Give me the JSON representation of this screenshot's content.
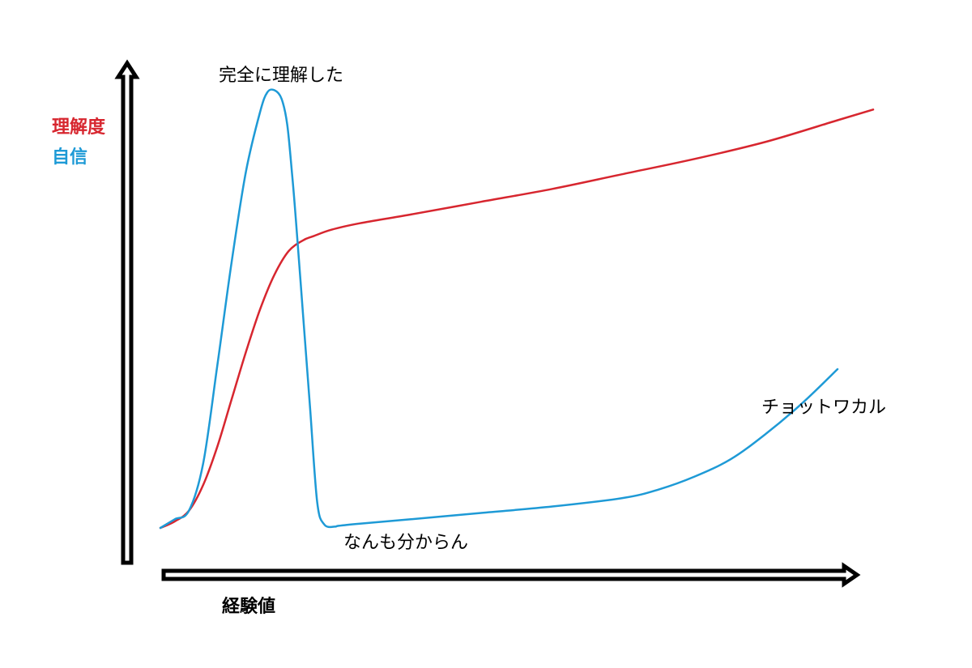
{
  "chart_data": {
    "type": "line",
    "title": "",
    "xlabel": "経験値",
    "ylabel": "",
    "xlim": [
      0,
      100
    ],
    "ylim": [
      0,
      100
    ],
    "grid": false,
    "legend": "top-left",
    "series": [
      {
        "name": "理解度",
        "color": "#d7262f",
        "x": [
          0,
          2,
          4,
          6,
          8,
          10,
          12,
          14,
          16,
          18,
          20,
          21.5,
          24,
          28,
          35,
          45,
          55,
          65,
          75,
          85,
          95,
          100
        ],
        "y": [
          0,
          1.5,
          4,
          10,
          19,
          30,
          41,
          51,
          59,
          64.5,
          67,
          68,
          69.5,
          71,
          73,
          76,
          79,
          82.5,
          86,
          90,
          95,
          97.5
        ]
      },
      {
        "name": "自信",
        "color": "#1e9ad6",
        "x": [
          0,
          2,
          4,
          6,
          8,
          10,
          12,
          14,
          15,
          16,
          17,
          17.8,
          18.5,
          19,
          20,
          21,
          22,
          23,
          24.5,
          25,
          28,
          35,
          45,
          55,
          65,
          70,
          75,
          80,
          85,
          90,
          95
        ],
        "y": [
          0,
          2,
          4,
          15,
          38,
          62,
          83,
          97,
          101.5,
          102,
          100,
          94,
          82,
          72,
          50,
          28,
          6,
          0.8,
          0.3,
          0.5,
          1,
          2,
          3.5,
          5,
          7,
          9,
          12,
          16,
          22,
          29,
          37
        ]
      }
    ],
    "annotations": [
      {
        "text": "完全に理解した",
        "x": 16.5,
        "y": 102
      },
      {
        "text": "なんも分からん",
        "x": 24.5,
        "y": 0
      },
      {
        "text": "チョットワカル",
        "x": 95,
        "y": 37
      }
    ]
  }
}
